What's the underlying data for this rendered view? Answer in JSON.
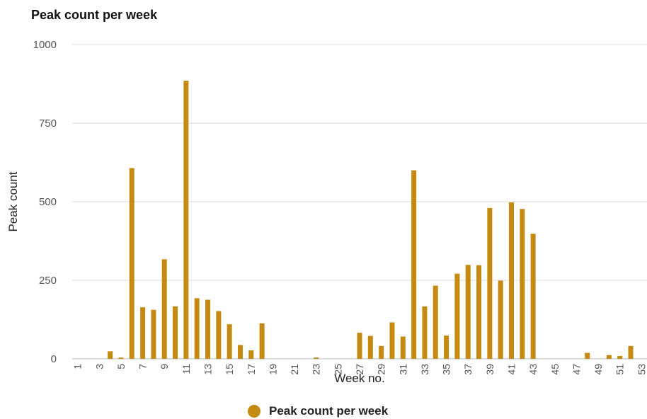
{
  "chart_data": {
    "type": "bar",
    "title": "Peak count per week",
    "xlabel": "Week no.",
    "ylabel": "Peak count",
    "ylim": [
      0,
      1000
    ],
    "yticks": [
      0,
      250,
      500,
      750,
      1000
    ],
    "grid": true,
    "legend_position": "bottom",
    "bar_color": "#c68a12",
    "categories": [
      "1",
      "2",
      "3",
      "4",
      "5",
      "6",
      "7",
      "8",
      "9",
      "10",
      "11",
      "12",
      "13",
      "14",
      "15",
      "16",
      "17",
      "18",
      "19",
      "20",
      "21",
      "22",
      "23",
      "24",
      "25",
      "26",
      "27",
      "28",
      "29",
      "30",
      "31",
      "32",
      "33",
      "34",
      "35",
      "36",
      "37",
      "38",
      "39",
      "40",
      "41",
      "42",
      "43",
      "44",
      "45",
      "46",
      "47",
      "48",
      "49",
      "50",
      "51",
      "52",
      "53"
    ],
    "xtick_labels": [
      "1",
      "3",
      "5",
      "7",
      "9",
      "11",
      "13",
      "15",
      "17",
      "19",
      "21",
      "23",
      "25",
      "27",
      "29",
      "31",
      "33",
      "35",
      "37",
      "39",
      "41",
      "43",
      "45",
      "47",
      "49",
      "51",
      "53"
    ],
    "series": [
      {
        "name": "Peak count per week",
        "values": [
          0,
          0,
          0,
          24,
          4,
          607,
          164,
          156,
          317,
          167,
          885,
          193,
          188,
          152,
          110,
          44,
          27,
          113,
          0,
          0,
          0,
          0,
          4,
          0,
          0,
          0,
          83,
          73,
          41,
          116,
          71,
          600,
          167,
          233,
          74,
          271,
          299,
          298,
          480,
          249,
          498,
          477,
          398,
          0,
          0,
          0,
          0,
          19,
          0,
          12,
          9,
          41,
          0
        ]
      }
    ]
  }
}
